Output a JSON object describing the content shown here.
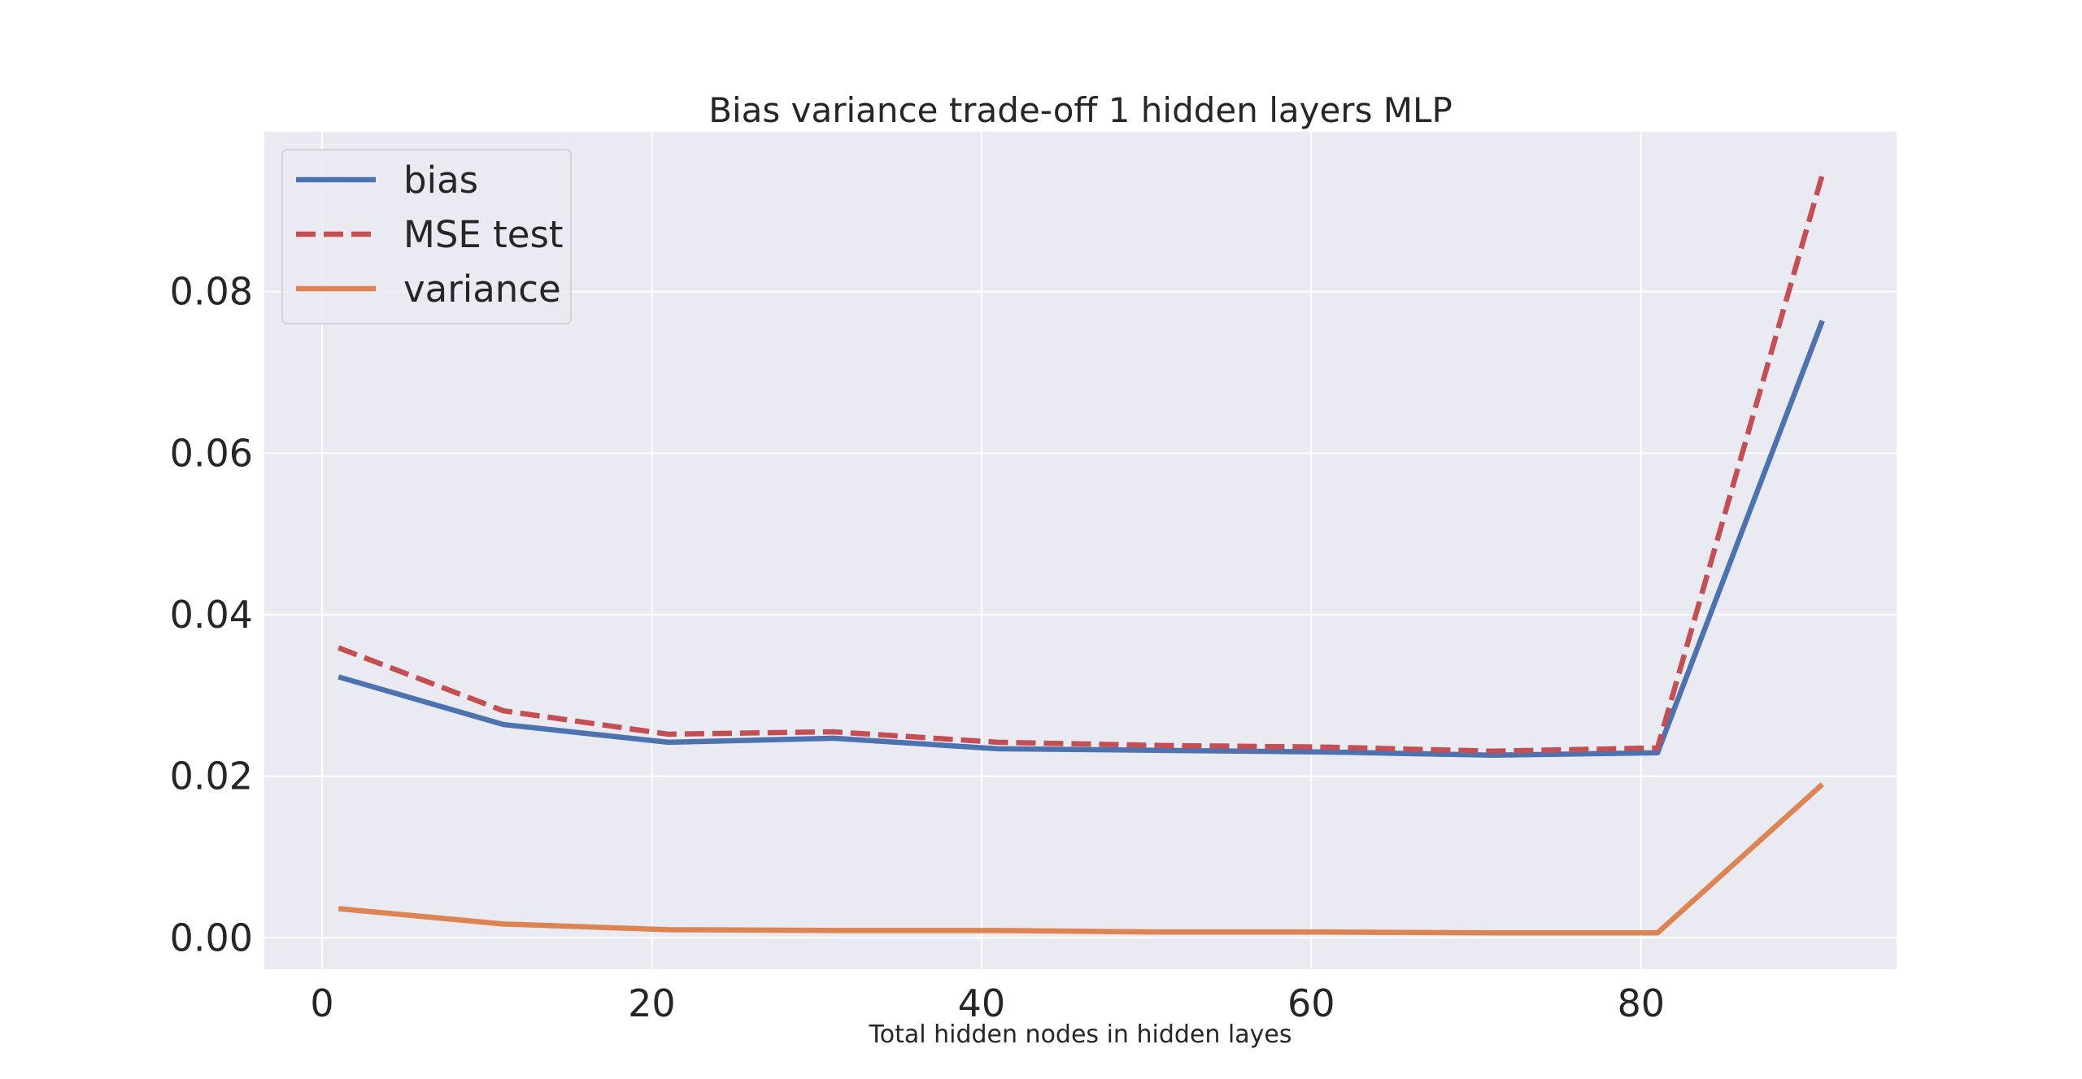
{
  "chart_data": {
    "type": "line",
    "title": "Bias variance trade-off 1 hidden layers MLP",
    "xlabel": "Total hidden nodes in hidden layes",
    "ylabel": "",
    "xlim": [
      -3.5,
      95.5
    ],
    "ylim": [
      -0.0039,
      0.0998
    ],
    "xticks": [
      0,
      20,
      40,
      60,
      80
    ],
    "xtick_labels": [
      "0",
      "20",
      "40",
      "60",
      "80"
    ],
    "yticks": [
      0.0,
      0.02,
      0.04,
      0.06,
      0.08
    ],
    "ytick_labels": [
      "0.00",
      "0.02",
      "0.04",
      "0.06",
      "0.08"
    ],
    "grid": true,
    "legend_position": "top-left",
    "x": [
      1,
      11,
      21,
      31,
      41,
      51,
      61,
      71,
      81,
      91
    ],
    "series": [
      {
        "name": "bias",
        "color": "#4c72b0",
        "style": "solid",
        "values": [
          0.0323,
          0.0264,
          0.0242,
          0.0247,
          0.0234,
          0.0232,
          0.023,
          0.0226,
          0.0229,
          0.0764
        ]
      },
      {
        "name": "MSE test",
        "color": "#c44e52",
        "style": "dashed",
        "values": [
          0.0359,
          0.0281,
          0.0252,
          0.0255,
          0.0242,
          0.0238,
          0.0236,
          0.0231,
          0.0235,
          0.0945
        ]
      },
      {
        "name": "variance",
        "color": "#dd8452",
        "style": "solid",
        "values": [
          0.0036,
          0.0017,
          0.001,
          0.0009,
          0.0009,
          0.0007,
          0.0007,
          0.0006,
          0.0006,
          0.019
        ]
      }
    ]
  },
  "colors": {
    "plot_background": "#eaeaf2",
    "grid": "#ffffff",
    "text": "#262626",
    "legend_background": "#eaeaf2",
    "legend_border": "#cccccc"
  }
}
